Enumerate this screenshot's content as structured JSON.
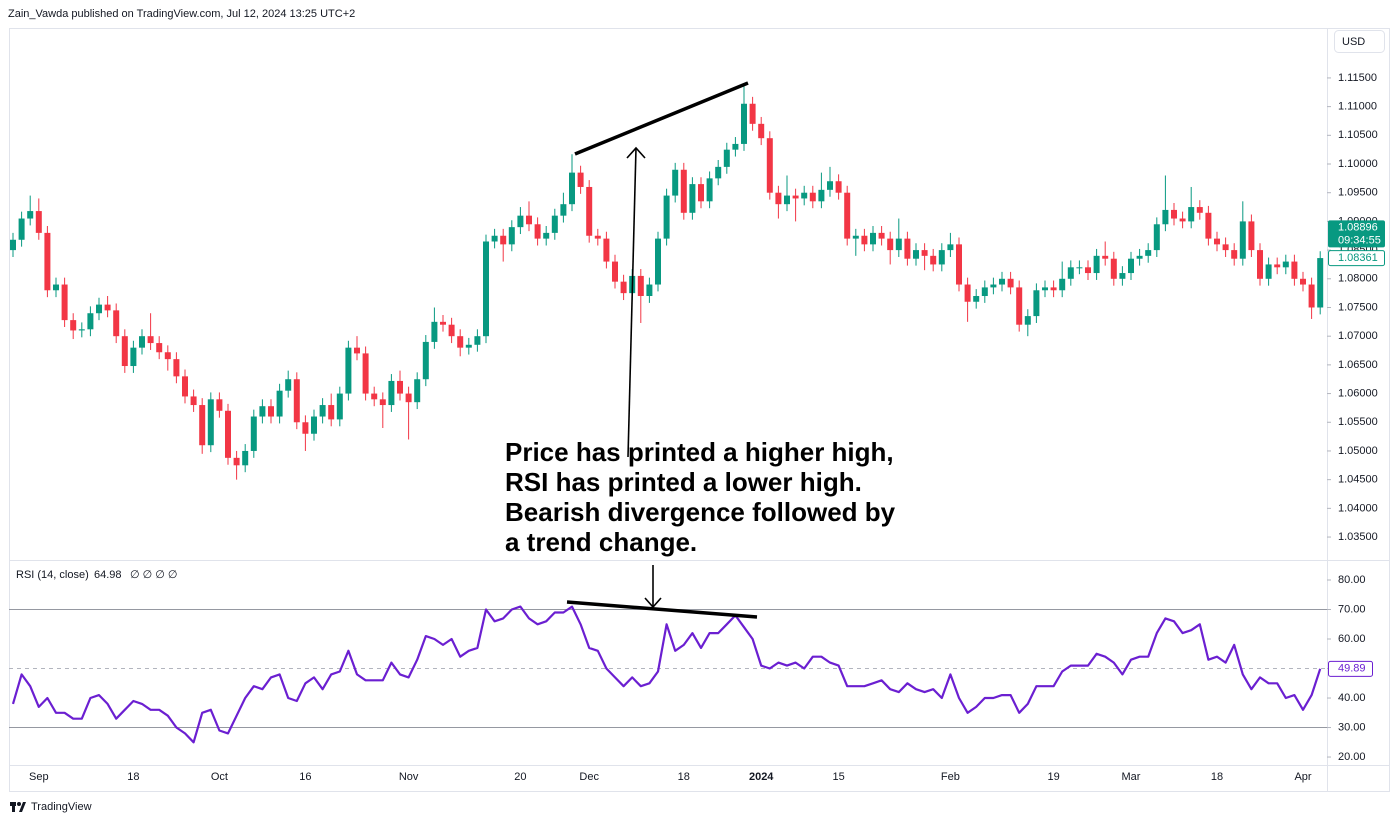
{
  "header": {
    "attribution": "Zain_Vawda published on TradingView.com, Jul 12, 2024 13:25 UTC+2",
    "currency": "USD"
  },
  "footer": {
    "brand": "TradingView"
  },
  "annotation": {
    "lines": [
      "Price has printed a higher high,",
      "RSI has printed a lower high.",
      "Bearish divergence followed by",
      "a trend change."
    ]
  },
  "chart_data": [
    {
      "type": "candlestick",
      "up_color": "#089981",
      "down_color": "#f23645",
      "ylim": [
        1.031,
        1.1237
      ],
      "yticks": [
        {
          "value": 1.035,
          "label": "1.03500"
        },
        {
          "value": 1.04,
          "label": "1.04000"
        },
        {
          "value": 1.045,
          "label": "1.04500"
        },
        {
          "value": 1.05,
          "label": "1.05000"
        },
        {
          "value": 1.055,
          "label": "1.05500"
        },
        {
          "value": 1.06,
          "label": "1.06000"
        },
        {
          "value": 1.065,
          "label": "1.06500"
        },
        {
          "value": 1.07,
          "label": "1.07000"
        },
        {
          "value": 1.075,
          "label": "1.07500"
        },
        {
          "value": 1.08,
          "label": "1.08000"
        },
        {
          "value": 1.085,
          "label": "1.08500"
        },
        {
          "value": 1.09,
          "label": "1.09000"
        },
        {
          "value": 1.095,
          "label": "1.09500"
        },
        {
          "value": 1.1,
          "label": "1.10000"
        },
        {
          "value": 1.105,
          "label": "1.10500"
        },
        {
          "value": 1.11,
          "label": "1.11000"
        },
        {
          "value": 1.115,
          "label": "1.11500"
        }
      ],
      "live_price": 1.08896,
      "countdown": "09:34:55",
      "categories": [
        null,
        null,
        null,
        "Sep",
        null,
        null,
        null,
        null,
        null,
        null,
        null,
        null,
        null,
        null,
        "18",
        null,
        null,
        null,
        null,
        null,
        null,
        null,
        null,
        null,
        "Oct",
        null,
        null,
        null,
        null,
        null,
        null,
        null,
        null,
        null,
        "16",
        null,
        null,
        null,
        null,
        null,
        null,
        null,
        null,
        null,
        null,
        null,
        "Nov",
        null,
        null,
        null,
        null,
        null,
        null,
        null,
        null,
        null,
        null,
        null,
        null,
        "20",
        null,
        null,
        null,
        null,
        null,
        null,
        null,
        "Dec",
        null,
        null,
        null,
        null,
        null,
        null,
        null,
        null,
        null,
        null,
        "18",
        null,
        null,
        null,
        null,
        null,
        null,
        null,
        null,
        "2024",
        null,
        null,
        null,
        null,
        null,
        null,
        null,
        null,
        "15",
        null,
        null,
        null,
        null,
        null,
        null,
        null,
        null,
        null,
        null,
        null,
        null,
        "Feb",
        null,
        null,
        null,
        null,
        null,
        null,
        null,
        null,
        null,
        null,
        null,
        "19",
        null,
        null,
        null,
        null,
        null,
        null,
        null,
        null,
        "Mar",
        null,
        null,
        null,
        null,
        null,
        null,
        null,
        null,
        null,
        "18",
        null,
        null,
        null,
        null,
        null,
        null,
        null,
        null,
        null,
        "Apr",
        null,
        null
      ],
      "open": [
        1.085,
        1.0868,
        1.0905,
        1.0918,
        1.088,
        1.078,
        1.079,
        1.0728,
        1.071,
        1.0712,
        1.074,
        1.0755,
        1.0745,
        1.07,
        1.0648,
        1.068,
        1.07,
        1.0688,
        1.0672,
        1.066,
        1.063,
        1.0595,
        1.058,
        1.051,
        1.059,
        1.057,
        1.0488,
        1.0475,
        1.05,
        1.056,
        1.0578,
        1.056,
        1.0605,
        1.0625,
        1.055,
        1.053,
        1.056,
        1.058,
        1.0555,
        1.06,
        1.068,
        1.067,
        1.06,
        1.059,
        1.058,
        1.0622,
        1.06,
        1.0585,
        1.0625,
        1.069,
        1.0725,
        1.072,
        1.07,
        1.068,
        1.0685,
        1.07,
        1.0865,
        1.0875,
        1.086,
        1.089,
        1.091,
        1.0895,
        1.087,
        1.088,
        1.091,
        1.093,
        1.0985,
        1.096,
        1.0875,
        1.087,
        1.083,
        1.0795,
        1.0775,
        1.0805,
        1.077,
        1.079,
        1.087,
        1.0945,
        1.099,
        1.0915,
        1.0965,
        1.0935,
        1.0975,
        1.0995,
        1.1025,
        1.1035,
        1.1105,
        1.107,
        1.1045,
        1.095,
        1.093,
        1.0945,
        1.094,
        1.095,
        1.0935,
        1.0955,
        1.097,
        1.095,
        1.087,
        1.0875,
        1.086,
        1.088,
        1.087,
        1.085,
        1.087,
        1.0835,
        1.085,
        1.084,
        1.0825,
        1.085,
        1.086,
        1.079,
        1.076,
        1.077,
        1.0785,
        1.079,
        1.08,
        1.0785,
        1.072,
        1.0735,
        1.078,
        1.0785,
        1.078,
        1.08,
        1.082,
        1.082,
        1.081,
        1.084,
        1.0835,
        1.08,
        1.081,
        1.0835,
        1.084,
        1.085,
        1.0895,
        1.092,
        1.0905,
        1.09,
        1.0925,
        1.0915,
        1.087,
        1.086,
        1.085,
        1.0835,
        1.09,
        1.085,
        1.08,
        1.0825,
        1.082,
        1.083,
        1.08,
        1.079,
        1.075
      ],
      "high": [
        1.088,
        1.0917,
        1.0945,
        1.094,
        1.0892,
        1.0802,
        1.0802,
        1.074,
        1.0724,
        1.0752,
        1.0767,
        1.077,
        1.0757,
        1.0712,
        1.0692,
        1.0712,
        1.074,
        1.07,
        1.0684,
        1.0672,
        1.0642,
        1.0607,
        1.0592,
        1.0602,
        1.0602,
        1.0582,
        1.05,
        1.0512,
        1.0572,
        1.059,
        1.059,
        1.0617,
        1.064,
        1.0637,
        1.0562,
        1.0572,
        1.0592,
        1.06,
        1.0612,
        1.0692,
        1.07,
        1.0682,
        1.0612,
        1.0602,
        1.0634,
        1.064,
        1.0612,
        1.0637,
        1.0702,
        1.075,
        1.0737,
        1.0732,
        1.0712,
        1.0697,
        1.0712,
        1.0877,
        1.0887,
        1.0887,
        1.0902,
        1.0925,
        1.0935,
        1.0907,
        1.0892,
        1.0922,
        1.095,
        1.1017,
        1.0997,
        1.0972,
        1.0887,
        1.0882,
        1.0842,
        1.0807,
        1.0817,
        1.0817,
        1.0802,
        1.0882,
        1.0957,
        1.1002,
        1.1002,
        1.0977,
        1.0977,
        1.0987,
        1.1007,
        1.1037,
        1.1047,
        1.1135,
        1.1117,
        1.1082,
        1.1057,
        1.0962,
        1.098,
        1.0957,
        1.0962,
        1.0962,
        1.0985,
        1.0995,
        1.0982,
        1.0962,
        1.0887,
        1.0887,
        1.0892,
        1.0892,
        1.0882,
        1.0905,
        1.0882,
        1.0862,
        1.0862,
        1.0852,
        1.0862,
        1.088,
        1.0872,
        1.0802,
        1.0782,
        1.0797,
        1.0802,
        1.0812,
        1.0812,
        1.0797,
        1.0747,
        1.0792,
        1.0797,
        1.0797,
        1.083,
        1.0832,
        1.0832,
        1.0832,
        1.0852,
        1.0865,
        1.0847,
        1.0822,
        1.0847,
        1.0852,
        1.0862,
        1.0907,
        1.098,
        1.0932,
        1.0917,
        1.096,
        1.0937,
        1.0927,
        1.0882,
        1.0872,
        1.0862,
        1.0935,
        1.0912,
        1.0862,
        1.0837,
        1.0837,
        1.0842,
        1.0842,
        1.0812,
        1.0802,
        1.0848
      ],
      "low": [
        1.0838,
        1.0856,
        1.0893,
        1.0868,
        1.0768,
        1.0768,
        1.0716,
        1.0695,
        1.0698,
        1.07,
        1.0728,
        1.0733,
        1.0688,
        1.0636,
        1.0636,
        1.0668,
        1.0676,
        1.066,
        1.064,
        1.0618,
        1.0583,
        1.0568,
        1.0495,
        1.0498,
        1.0558,
        1.0476,
        1.045,
        1.0463,
        1.0488,
        1.0548,
        1.0548,
        1.0548,
        1.0593,
        1.0538,
        1.05,
        1.0518,
        1.0548,
        1.0543,
        1.0543,
        1.0588,
        1.0658,
        1.0588,
        1.0578,
        1.054,
        1.0568,
        1.0588,
        1.052,
        1.0573,
        1.0613,
        1.0678,
        1.0708,
        1.0688,
        1.0665,
        1.0668,
        1.0673,
        1.0688,
        1.0853,
        1.083,
        1.0848,
        1.0878,
        1.0883,
        1.0858,
        1.0858,
        1.0868,
        1.0898,
        1.0918,
        1.0948,
        1.0863,
        1.0858,
        1.0818,
        1.0783,
        1.0763,
        1.0763,
        1.0723,
        1.0758,
        1.0778,
        1.0858,
        1.0933,
        1.0903,
        1.0903,
        1.0923,
        1.0923,
        1.0963,
        1.0983,
        1.1013,
        1.1023,
        1.1058,
        1.1033,
        1.0938,
        1.0905,
        1.0918,
        1.09,
        1.0928,
        1.0923,
        1.0923,
        1.0943,
        1.0938,
        1.0858,
        1.084,
        1.0848,
        1.0848,
        1.0858,
        1.0825,
        1.0838,
        1.0823,
        1.0823,
        1.0815,
        1.0813,
        1.0813,
        1.0838,
        1.0778,
        1.0725,
        1.0748,
        1.0758,
        1.0773,
        1.0778,
        1.0773,
        1.0708,
        1.07,
        1.0723,
        1.0768,
        1.0768,
        1.0768,
        1.0788,
        1.0808,
        1.0798,
        1.0798,
        1.0823,
        1.0788,
        1.0788,
        1.0798,
        1.0823,
        1.0828,
        1.0838,
        1.0883,
        1.0893,
        1.0888,
        1.0888,
        1.0903,
        1.0858,
        1.0848,
        1.0838,
        1.0823,
        1.0823,
        1.0838,
        1.0788,
        1.0788,
        1.0808,
        1.0808,
        1.0788,
        1.0778,
        1.073,
        1.0738
      ],
      "close": [
        1.0868,
        1.0905,
        1.0918,
        1.088,
        1.078,
        1.079,
        1.0728,
        1.071,
        1.0712,
        1.074,
        1.0755,
        1.0745,
        1.07,
        1.0648,
        1.068,
        1.07,
        1.0688,
        1.0672,
        1.066,
        1.063,
        1.0595,
        1.058,
        1.051,
        1.059,
        1.057,
        1.0488,
        1.0475,
        1.05,
        1.056,
        1.0578,
        1.056,
        1.0605,
        1.0625,
        1.055,
        1.053,
        1.056,
        1.058,
        1.0555,
        1.06,
        1.068,
        1.067,
        1.06,
        1.059,
        1.058,
        1.0622,
        1.06,
        1.0585,
        1.0625,
        1.069,
        1.0725,
        1.072,
        1.07,
        1.068,
        1.0685,
        1.07,
        1.0865,
        1.0875,
        1.086,
        1.089,
        1.091,
        1.0895,
        1.087,
        1.088,
        1.091,
        1.093,
        1.0985,
        1.096,
        1.0875,
        1.087,
        1.083,
        1.0795,
        1.0775,
        1.0805,
        1.077,
        1.079,
        1.087,
        1.0945,
        1.099,
        1.0915,
        1.0965,
        1.0935,
        1.0975,
        1.0995,
        1.1025,
        1.1035,
        1.1105,
        1.107,
        1.1045,
        1.095,
        1.093,
        1.0945,
        1.094,
        1.095,
        1.0935,
        1.0955,
        1.097,
        1.095,
        1.087,
        1.0875,
        1.086,
        1.088,
        1.087,
        1.085,
        1.087,
        1.0835,
        1.085,
        1.084,
        1.0825,
        1.085,
        1.086,
        1.079,
        1.076,
        1.077,
        1.0785,
        1.079,
        1.08,
        1.0785,
        1.072,
        1.0735,
        1.078,
        1.0785,
        1.078,
        1.08,
        1.082,
        1.082,
        1.081,
        1.084,
        1.0835,
        1.08,
        1.081,
        1.0835,
        1.084,
        1.085,
        1.0895,
        1.092,
        1.0905,
        1.09,
        1.0925,
        1.0915,
        1.087,
        1.086,
        1.085,
        1.0835,
        1.09,
        1.085,
        1.08,
        1.0825,
        1.082,
        1.083,
        1.08,
        1.079,
        1.075,
        1.08361
      ]
    },
    {
      "type": "line",
      "ylim": [
        17.3,
        86.1
      ],
      "yticks": [
        {
          "value": 20,
          "label": "20.00"
        },
        {
          "value": 30,
          "label": "30.00"
        },
        {
          "value": 40,
          "label": "40.00"
        },
        {
          "value": 50,
          "label": "50.00"
        },
        {
          "value": 60,
          "label": "60.00"
        },
        {
          "value": 70,
          "label": "70.00"
        },
        {
          "value": 80,
          "label": "80.00"
        }
      ],
      "bands": [
        70,
        30
      ],
      "midline": 50,
      "legend_value": 64.98,
      "legend_extras": "∅ ∅ ∅ ∅",
      "series": [
        {
          "name": "RSI (14, close)",
          "color": "#6b1fd1",
          "values": [
            38,
            48,
            44,
            37,
            40,
            35,
            35,
            33,
            33,
            40,
            41,
            38,
            33,
            36,
            39,
            38,
            36,
            36,
            34,
            30,
            28,
            25,
            35,
            36,
            29,
            28,
            34,
            40,
            44,
            43,
            47,
            48,
            40,
            39,
            45,
            47,
            43,
            48,
            49,
            56,
            48,
            46,
            46,
            46,
            52,
            48,
            47,
            53,
            61,
            60,
            58,
            60,
            54,
            56,
            57,
            70,
            66,
            67,
            70,
            71,
            67,
            65,
            66,
            69,
            69,
            71,
            65,
            57,
            56,
            50,
            47,
            44,
            47,
            44,
            45,
            49,
            65,
            56,
            58,
            62,
            57,
            62,
            62,
            65,
            68,
            64,
            60,
            51,
            50,
            52,
            51,
            52,
            50,
            54,
            54,
            52,
            51,
            44,
            44,
            44,
            45,
            46,
            43,
            42,
            45,
            43,
            42,
            43,
            40,
            48,
            40,
            35,
            37,
            40,
            40,
            41,
            41,
            35,
            38,
            44,
            44,
            44,
            49,
            51,
            51,
            51,
            55,
            54,
            52,
            48,
            53,
            54,
            54,
            62,
            67,
            66,
            62,
            63,
            65,
            53,
            54,
            52,
            58,
            48,
            43,
            47,
            45,
            45,
            40,
            41,
            36,
            41,
            49.89
          ]
        }
      ]
    }
  ]
}
